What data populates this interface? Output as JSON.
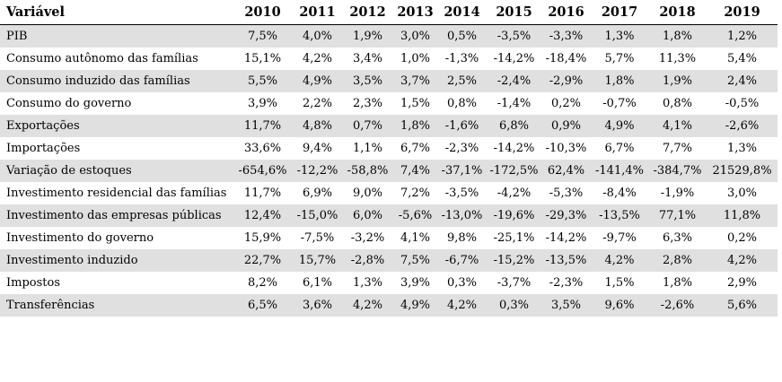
{
  "chart_data": {
    "type": "table",
    "title": "",
    "columns": [
      "Variável",
      "2010",
      "2011",
      "2012",
      "2013",
      "2014",
      "2015",
      "2016",
      "2017",
      "2018",
      "2019"
    ],
    "rows": [
      [
        "PIB",
        "7,5%",
        "4,0%",
        "1,9%",
        "3,0%",
        "0,5%",
        "-3,5%",
        "-3,3%",
        "1,3%",
        "1,8%",
        "1,2%"
      ],
      [
        "Consumo autônomo das famílias",
        "15,1%",
        "4,2%",
        "3,4%",
        "1,0%",
        "-1,3%",
        "-14,2%",
        "-18,4%",
        "5,7%",
        "11,3%",
        "5,4%"
      ],
      [
        "Consumo induzido das famílias",
        "5,5%",
        "4,9%",
        "3,5%",
        "3,7%",
        "2,5%",
        "-2,4%",
        "-2,9%",
        "1,8%",
        "1,9%",
        "2,4%"
      ],
      [
        "Consumo do governo",
        "3,9%",
        "2,2%",
        "2,3%",
        "1,5%",
        "0,8%",
        "-1,4%",
        "0,2%",
        "-0,7%",
        "0,8%",
        "-0,5%"
      ],
      [
        "Exportações",
        "11,7%",
        "4,8%",
        "0,7%",
        "1,8%",
        "-1,6%",
        "6,8%",
        "0,9%",
        "4,9%",
        "4,1%",
        "-2,6%"
      ],
      [
        "Importações",
        "33,6%",
        "9,4%",
        "1,1%",
        "6,7%",
        "-2,3%",
        "-14,2%",
        "-10,3%",
        "6,7%",
        "7,7%",
        "1,3%"
      ],
      [
        "Variação de estoques",
        "-654,6%",
        "-12,2%",
        "-58,8%",
        "7,4%",
        "-37,1%",
        "-172,5%",
        "62,4%",
        "-141,4%",
        "-384,7%",
        "21529,8%"
      ],
      [
        "Investimento residencial das famílias",
        "11,7%",
        "6,9%",
        "9,0%",
        "7,2%",
        "-3,5%",
        "-4,2%",
        "-5,3%",
        "-8,4%",
        "-1,9%",
        "3,0%"
      ],
      [
        "Investimento das empresas públicas",
        "12,4%",
        "-15,0%",
        "6,0%",
        "-5,6%",
        "-13,0%",
        "-19,6%",
        "-29,3%",
        "-13,5%",
        "77,1%",
        "11,8%"
      ],
      [
        "Investimento do governo",
        "15,9%",
        "-7,5%",
        "-3,2%",
        "4,1%",
        "9,8%",
        "-25,1%",
        "-14,2%",
        "-9,7%",
        "6,3%",
        "0,2%"
      ],
      [
        "Investimento induzido",
        "22,7%",
        "15,7%",
        "-2,8%",
        "7,5%",
        "-6,7%",
        "-15,2%",
        "-13,5%",
        "4,2%",
        "2,8%",
        "4,2%"
      ],
      [
        "Impostos",
        "8,2%",
        "6,1%",
        "1,3%",
        "3,9%",
        "0,3%",
        "-3,7%",
        "-2,3%",
        "1,5%",
        "1,8%",
        "2,9%"
      ],
      [
        "Transferências",
        "6,5%",
        "3,6%",
        "4,2%",
        "4,9%",
        "4,2%",
        "0,3%",
        "3,5%",
        "9,6%",
        "-2,6%",
        "5,6%"
      ]
    ],
    "layout_hints": {
      "striped": true,
      "stripe_rows": "odd data rows starting with first (PIB)",
      "header_rule": "single horizontal rule under header row",
      "numeric_alignment": "center",
      "label_alignment": "left",
      "value_format": "percent with comma decimal separator"
    }
  },
  "colors": {
    "stripe": "#e0e0e0",
    "row_alt": "#ffffff",
    "text": "#000000",
    "header_border": "#000000",
    "background": "#ffffff"
  }
}
